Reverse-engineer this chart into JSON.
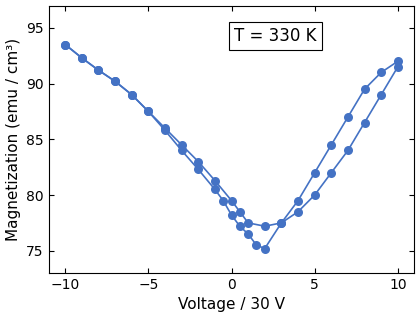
{
  "title_annotation": "T = 330 K",
  "xlabel": "Voltage / 30 V",
  "ylabel": "Magnetization (emu / cm³)",
  "xlim": [
    -11,
    11
  ],
  "ylim": [
    73,
    97
  ],
  "yticks": [
    75,
    80,
    85,
    90,
    95
  ],
  "xticks": [
    -10,
    -5,
    0,
    5,
    10
  ],
  "color": "#4472C4",
  "marker_size": 6.5,
  "line_width": 1.2,
  "curve_a_x": [
    -10,
    -9,
    -8,
    -7,
    -6,
    -5,
    -4,
    -3,
    -2,
    -1,
    0,
    0.5,
    1,
    2,
    3,
    4,
    5,
    6,
    7,
    8,
    9,
    10
  ],
  "curve_a_y": [
    93.5,
    92.3,
    91.2,
    90.2,
    89.0,
    87.5,
    86.0,
    84.5,
    83.0,
    81.3,
    79.5,
    78.5,
    77.5,
    77.2,
    77.5,
    78.5,
    80.0,
    82.0,
    84.0,
    86.5,
    89.0,
    91.5
  ],
  "curve_b_x": [
    -10,
    -9,
    -8,
    -7,
    -6,
    -5,
    -4,
    -3,
    -2,
    -1,
    -0.5,
    0,
    0.5,
    1,
    1.5,
    2,
    3,
    4,
    5,
    6,
    7,
    8,
    9,
    10
  ],
  "curve_b_y": [
    93.5,
    92.3,
    91.2,
    90.2,
    89.0,
    87.5,
    85.8,
    84.0,
    82.3,
    80.5,
    79.5,
    78.2,
    77.2,
    76.5,
    75.5,
    75.2,
    77.5,
    79.5,
    82.0,
    84.5,
    87.0,
    89.5,
    91.0,
    92.0
  ],
  "background_color": "#ffffff",
  "title_fontsize": 12,
  "label_fontsize": 11,
  "tick_fontsize": 10
}
